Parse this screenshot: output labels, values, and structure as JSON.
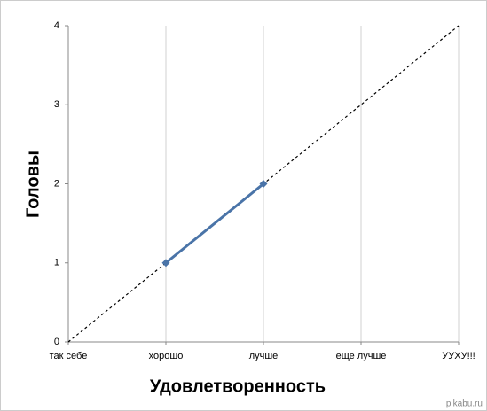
{
  "chart_data": {
    "type": "line",
    "x_label": "Удовлетворенность",
    "y_label": "Головы",
    "categories": [
      "так себе",
      "хорошо",
      "лучше",
      "еще лучше",
      "УУХУ!!!"
    ],
    "series": [
      {
        "color": "#4a74a8",
        "values": [
          null,
          1,
          2,
          null,
          null
        ],
        "marker": "diamond",
        "dash": false
      },
      {
        "color": "#000000",
        "values": [
          0,
          1,
          2,
          3,
          4
        ],
        "marker": "none",
        "dash": true
      }
    ],
    "ylim": [
      0,
      4
    ],
    "yticks": [
      0,
      1,
      2,
      3,
      4
    ],
    "grid": true,
    "watermark": "pikabu.ru"
  }
}
